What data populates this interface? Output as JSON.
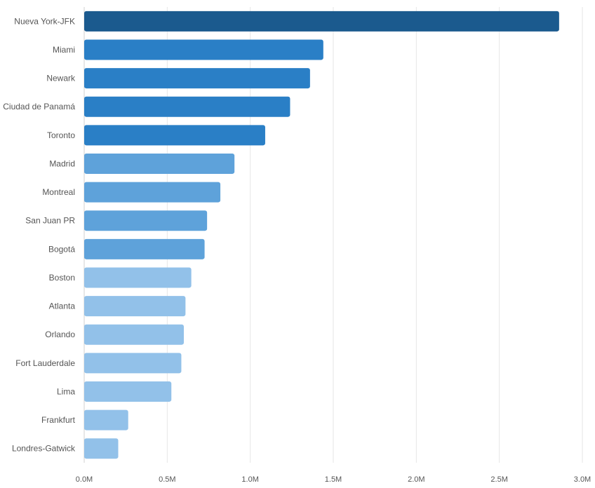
{
  "chart_data": {
    "type": "bar",
    "orientation": "horizontal",
    "title": "",
    "xlabel": "",
    "ylabel": "",
    "grid": true,
    "xlim": [
      0,
      3000000
    ],
    "x_ticks": [
      0,
      500000,
      1000000,
      1500000,
      2000000,
      2500000,
      3000000
    ],
    "x_tick_labels": [
      "0.0M",
      "0.5M",
      "1.0M",
      "1.5M",
      "2.0M",
      "2.5M",
      "3.0M"
    ],
    "categories": [
      "Nueva York-JFK",
      "Miami",
      "Newark",
      "Ciudad de Panamá",
      "Toronto",
      "Madrid",
      "Montreal",
      "San Juan PR",
      "Bogotá",
      "Boston",
      "Atlanta",
      "Orlando",
      "Fort Lauderdale",
      "Lima",
      "Frankfurt",
      "Londres-Gatwick"
    ],
    "values": [
      2860000,
      1440000,
      1360000,
      1240000,
      1090000,
      905000,
      820000,
      740000,
      725000,
      645000,
      610000,
      600000,
      585000,
      525000,
      265000,
      205000
    ],
    "colors": [
      "#1b5a8e",
      "#2a7fc6",
      "#2a7fc6",
      "#2a7fc6",
      "#2a7fc6",
      "#5ea2da",
      "#5ea2da",
      "#5ea2da",
      "#5ea2da",
      "#92c1e9",
      "#92c1e9",
      "#92c1e9",
      "#92c1e9",
      "#92c1e9",
      "#92c1e9",
      "#92c1e9"
    ]
  }
}
